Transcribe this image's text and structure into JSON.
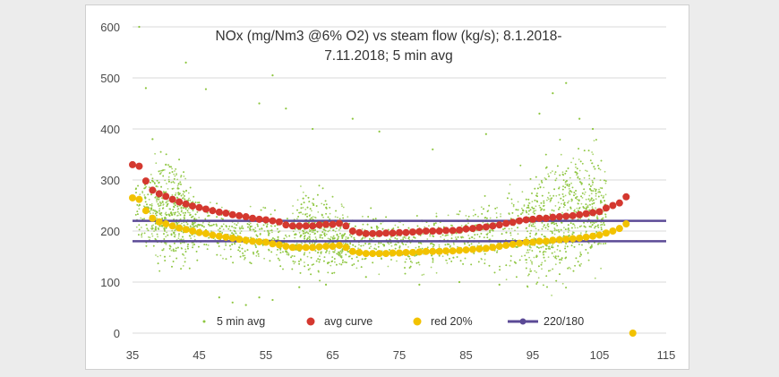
{
  "chart_data": {
    "type": "scatter",
    "title": "NOx (mg/Nm3 @6% O2) vs steam flow (kg/s); 8.1.2018-7.11.2018; 5 min avg",
    "title_lines": [
      "NOx (mg/Nm3 @6% O2) vs steam flow (kg/s); 8.1.2018-",
      "7.11.2018; 5 min avg"
    ],
    "xlabel": "",
    "ylabel": "",
    "xlim": [
      35,
      115
    ],
    "ylim": [
      0,
      600
    ],
    "x_ticks": [
      "35",
      "45",
      "55",
      "65",
      "75",
      "85",
      "95",
      "105",
      "115"
    ],
    "y_ticks": [
      "0",
      "100",
      "200",
      "300",
      "400",
      "500",
      "600"
    ],
    "grid": "horizontal",
    "legend_position": "bottom",
    "legend": [
      "5 min avg",
      "avg curve",
      "red 20%",
      "220/180"
    ],
    "series": [
      {
        "name": "5 min avg",
        "kind": "scatter-cloud",
        "color": "#8dc63f",
        "x": [
          35,
          37,
          39,
          41,
          43,
          45,
          47,
          49,
          51,
          53,
          55,
          57,
          59,
          61,
          63,
          65,
          67,
          69,
          71,
          73,
          75,
          77,
          79,
          81,
          83,
          85,
          87,
          89,
          91,
          93,
          95,
          97,
          99,
          101,
          103,
          105,
          106
        ],
        "band_mean": [
          245,
          245,
          240,
          235,
          225,
          215,
          205,
          195,
          190,
          185,
          185,
          180,
          185,
          200,
          200,
          190,
          180,
          178,
          178,
          178,
          178,
          178,
          180,
          182,
          185,
          188,
          190,
          192,
          195,
          200,
          205,
          215,
          225,
          235,
          240,
          240,
          240
        ],
        "band_spread": [
          55,
          60,
          85,
          90,
          70,
          55,
          50,
          45,
          45,
          45,
          45,
          45,
          50,
          70,
          70,
          60,
          45,
          45,
          45,
          45,
          45,
          45,
          45,
          45,
          45,
          50,
          55,
          60,
          70,
          80,
          90,
          100,
          110,
          110,
          100,
          90,
          80
        ],
        "outliers": [
          [
            37,
            480
          ],
          [
            38,
            380
          ],
          [
            40,
            330
          ],
          [
            43,
            530
          ],
          [
            46,
            478
          ],
          [
            54,
            450
          ],
          [
            56,
            505
          ],
          [
            58,
            440
          ],
          [
            62,
            400
          ],
          [
            68,
            420
          ],
          [
            72,
            395
          ],
          [
            80,
            360
          ],
          [
            88,
            390
          ],
          [
            96,
            430
          ],
          [
            98,
            470
          ],
          [
            100,
            490
          ],
          [
            102,
            420
          ],
          [
            104,
            400
          ],
          [
            48,
            70
          ],
          [
            50,
            60
          ],
          [
            52,
            55
          ],
          [
            54,
            70
          ],
          [
            56,
            65
          ],
          [
            60,
            90
          ],
          [
            64,
            95
          ],
          [
            70,
            110
          ],
          [
            78,
            95
          ],
          [
            84,
            100
          ],
          [
            90,
            95
          ],
          [
            36,
            600
          ]
        ]
      },
      {
        "name": "avg curve",
        "color": "#d4382f",
        "x": [
          35,
          36,
          37,
          38,
          39,
          40,
          41,
          42,
          43,
          44,
          45,
          46,
          47,
          48,
          49,
          50,
          51,
          52,
          53,
          54,
          55,
          56,
          57,
          58,
          59,
          60,
          61,
          62,
          63,
          64,
          65,
          66,
          67,
          68,
          69,
          70,
          71,
          72,
          73,
          74,
          75,
          76,
          77,
          78,
          79,
          80,
          81,
          82,
          83,
          84,
          85,
          86,
          87,
          88,
          89,
          90,
          91,
          92,
          93,
          94,
          95,
          96,
          97,
          98,
          99,
          100,
          101,
          102,
          103,
          104,
          105,
          106,
          107,
          108,
          109
        ],
        "y": [
          330,
          327,
          298,
          280,
          273,
          268,
          262,
          257,
          253,
          249,
          246,
          243,
          240,
          237,
          235,
          232,
          230,
          228,
          225,
          223,
          222,
          220,
          218,
          212,
          210,
          210,
          210,
          210,
          212,
          213,
          213,
          215,
          210,
          200,
          197,
          195,
          195,
          195,
          196,
          196,
          197,
          197,
          198,
          199,
          200,
          200,
          200,
          201,
          201,
          202,
          204,
          205,
          207,
          208,
          210,
          212,
          215,
          217,
          220,
          222,
          223,
          225,
          225,
          227,
          228,
          229,
          230,
          232,
          234,
          236,
          238,
          245,
          250,
          255,
          267
        ]
      },
      {
        "name": "red 20%",
        "color": "#f2c200",
        "x": [
          35,
          36,
          37,
          38,
          39,
          40,
          41,
          42,
          43,
          44,
          45,
          46,
          47,
          48,
          49,
          50,
          51,
          52,
          53,
          54,
          55,
          56,
          57,
          58,
          59,
          60,
          61,
          62,
          63,
          64,
          65,
          66,
          67,
          68,
          69,
          70,
          71,
          72,
          73,
          74,
          75,
          76,
          77,
          78,
          79,
          80,
          81,
          82,
          83,
          84,
          85,
          86,
          87,
          88,
          89,
          90,
          91,
          92,
          93,
          94,
          95,
          96,
          97,
          98,
          99,
          100,
          101,
          102,
          103,
          104,
          105,
          106,
          107,
          108,
          109
        ],
        "y": [
          265,
          262,
          240,
          225,
          218,
          214,
          210,
          206,
          203,
          200,
          197,
          195,
          192,
          190,
          188,
          186,
          184,
          182,
          180,
          179,
          178,
          175,
          173,
          170,
          168,
          168,
          168,
          168,
          169,
          170,
          170,
          172,
          168,
          160,
          158,
          156,
          156,
          156,
          156,
          157,
          157,
          158,
          158,
          159,
          160,
          160,
          160,
          161,
          161,
          162,
          163,
          164,
          165,
          166,
          168,
          170,
          172,
          174,
          176,
          178,
          178,
          180,
          180,
          182,
          183,
          184,
          185,
          186,
          188,
          190,
          192,
          196,
          200,
          205,
          214
        ]
      },
      {
        "name": "220/180",
        "color": "#5b4a96",
        "lines": [
          {
            "x": [
              35,
              115
            ],
            "y": [
              220,
              220
            ]
          },
          {
            "x": [
              35,
              115
            ],
            "y": [
              180,
              180
            ]
          }
        ]
      }
    ],
    "extra_points": [
      {
        "series": "red 20%",
        "x": 110,
        "y": 0
      }
    ]
  }
}
